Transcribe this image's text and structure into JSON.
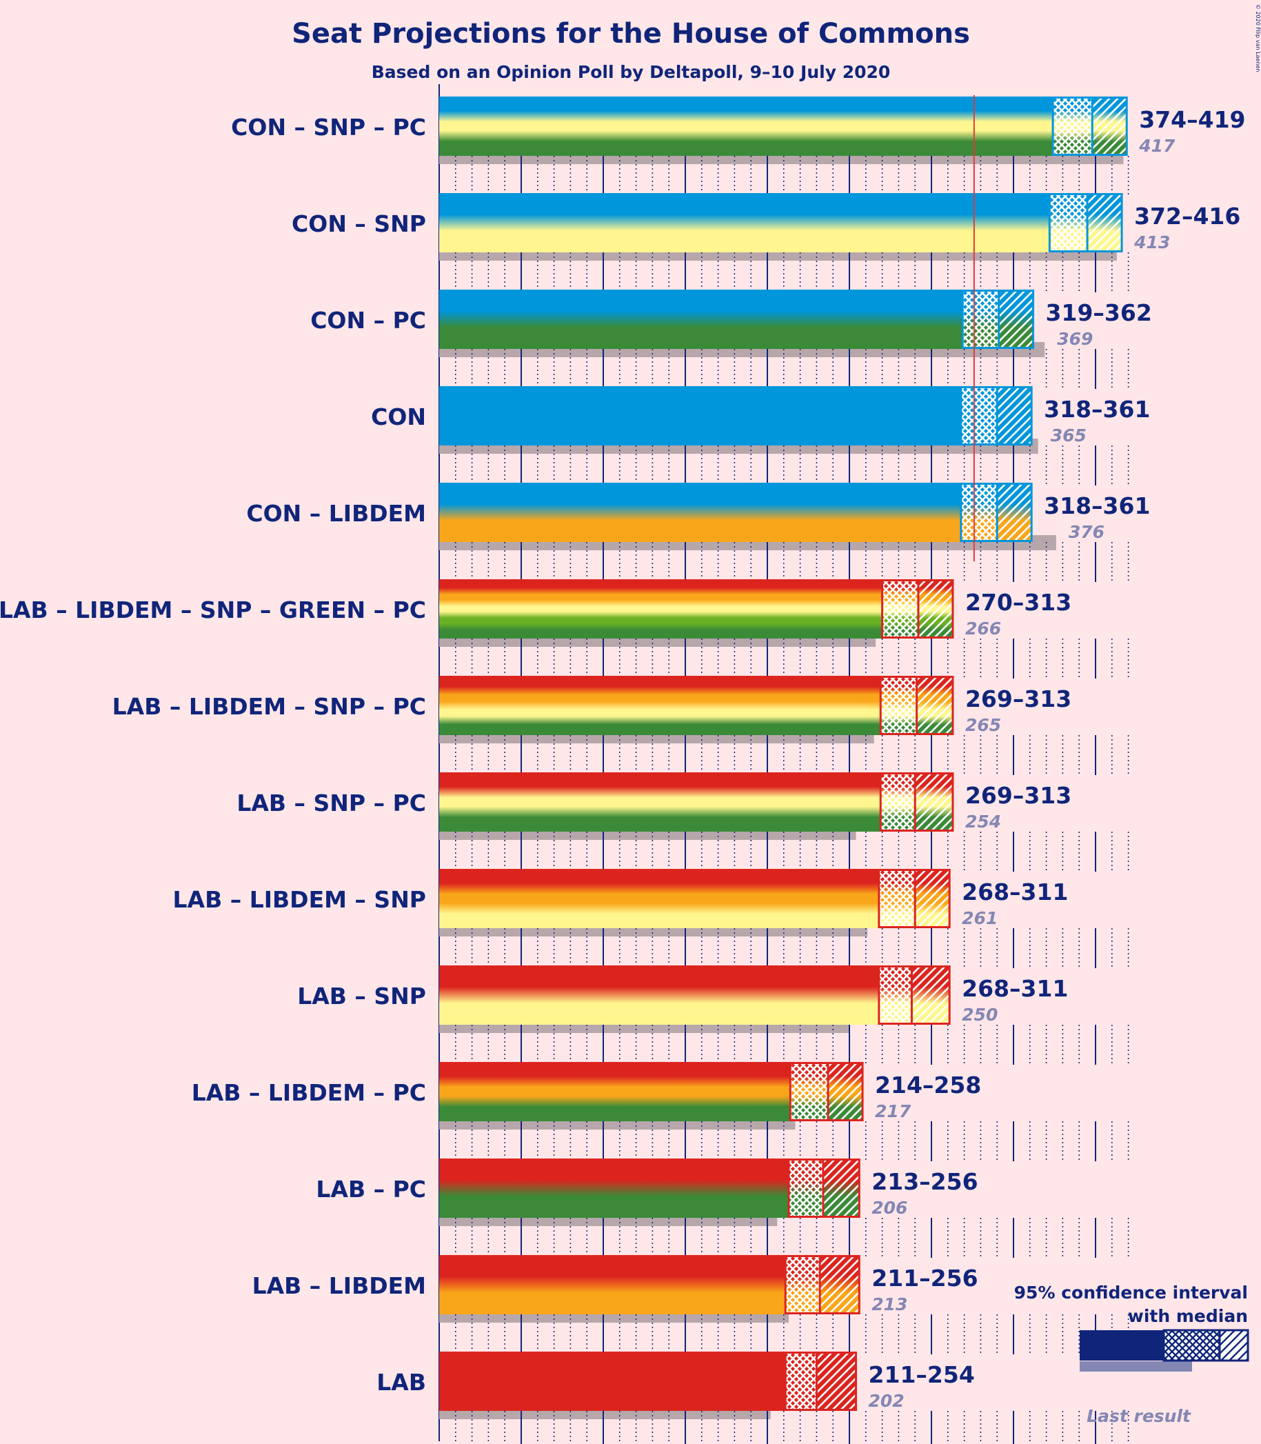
{
  "chart_data": {
    "type": "bar",
    "title": "Seat Projections for the House of Commons",
    "subtitle": "Based on an Opinion Poll by Deltapoll, 9–10 July 2020",
    "copyright": "© 2020 Filip van Laenen",
    "majority_line": 326,
    "xlim": [
      0,
      420
    ],
    "party_colors": {
      "CON": "#0096db",
      "LAB": "#dc241f",
      "LIBDEM": "#faa61a",
      "SNP": "#fff68f",
      "PC": "#3a8a38",
      "GREEN": "#6ab023"
    },
    "rows": [
      {
        "label": "CON – SNP – PC",
        "parties": [
          "CON",
          "SNP",
          "PC"
        ],
        "low": 374,
        "median": 398,
        "high": 419,
        "range_text": "374–419",
        "last": 417,
        "last_text": "417"
      },
      {
        "label": "CON – SNP",
        "parties": [
          "CON",
          "SNP"
        ],
        "low": 372,
        "median": 395,
        "high": 416,
        "range_text": "372–416",
        "last": 413,
        "last_text": "413"
      },
      {
        "label": "CON – PC",
        "parties": [
          "CON",
          "PC"
        ],
        "low": 319,
        "median": 341,
        "high": 362,
        "range_text": "319–362",
        "last": 369,
        "last_text": "369"
      },
      {
        "label": "CON",
        "parties": [
          "CON"
        ],
        "low": 318,
        "median": 340,
        "high": 361,
        "range_text": "318–361",
        "last": 365,
        "last_text": "365"
      },
      {
        "label": "CON – LIBDEM",
        "parties": [
          "CON",
          "LIBDEM"
        ],
        "low": 318,
        "median": 340,
        "high": 361,
        "range_text": "318–361",
        "last": 376,
        "last_text": "376"
      },
      {
        "label": "LAB – LIBDEM – SNP – GREEN – PC",
        "parties": [
          "LAB",
          "LIBDEM",
          "SNP",
          "GREEN",
          "PC"
        ],
        "low": 270,
        "median": 292,
        "high": 313,
        "range_text": "270–313",
        "last": 266,
        "last_text": "266"
      },
      {
        "label": "LAB – LIBDEM – SNP – PC",
        "parties": [
          "LAB",
          "LIBDEM",
          "SNP",
          "PC"
        ],
        "low": 269,
        "median": 291,
        "high": 313,
        "range_text": "269–313",
        "last": 265,
        "last_text": "265"
      },
      {
        "label": "LAB – SNP – PC",
        "parties": [
          "LAB",
          "SNP",
          "PC"
        ],
        "low": 269,
        "median": 290,
        "high": 313,
        "range_text": "269–313",
        "last": 254,
        "last_text": "254"
      },
      {
        "label": "LAB – LIBDEM – SNP",
        "parties": [
          "LAB",
          "LIBDEM",
          "SNP"
        ],
        "low": 268,
        "median": 290,
        "high": 311,
        "range_text": "268–311",
        "last": 261,
        "last_text": "261"
      },
      {
        "label": "LAB – SNP",
        "parties": [
          "LAB",
          "SNP"
        ],
        "low": 268,
        "median": 288,
        "high": 311,
        "range_text": "268–311",
        "last": 250,
        "last_text": "250"
      },
      {
        "label": "LAB – LIBDEM – PC",
        "parties": [
          "LAB",
          "LIBDEM",
          "PC"
        ],
        "low": 214,
        "median": 237,
        "high": 258,
        "range_text": "214–258",
        "last": 217,
        "last_text": "217"
      },
      {
        "label": "LAB – PC",
        "parties": [
          "LAB",
          "PC"
        ],
        "low": 213,
        "median": 234,
        "high": 256,
        "range_text": "213–256",
        "last": 206,
        "last_text": "206"
      },
      {
        "label": "LAB – LIBDEM",
        "parties": [
          "LAB",
          "LIBDEM"
        ],
        "low": 211,
        "median": 232,
        "high": 256,
        "range_text": "211–256",
        "last": 213,
        "last_text": "213"
      },
      {
        "label": "LAB",
        "parties": [
          "LAB"
        ],
        "low": 211,
        "median": 230,
        "high": 254,
        "range_text": "211–254",
        "last": 202,
        "last_text": "202"
      }
    ],
    "legend": {
      "line1": "95% confidence interval",
      "line2": "with median",
      "last_result": "Last result"
    }
  }
}
